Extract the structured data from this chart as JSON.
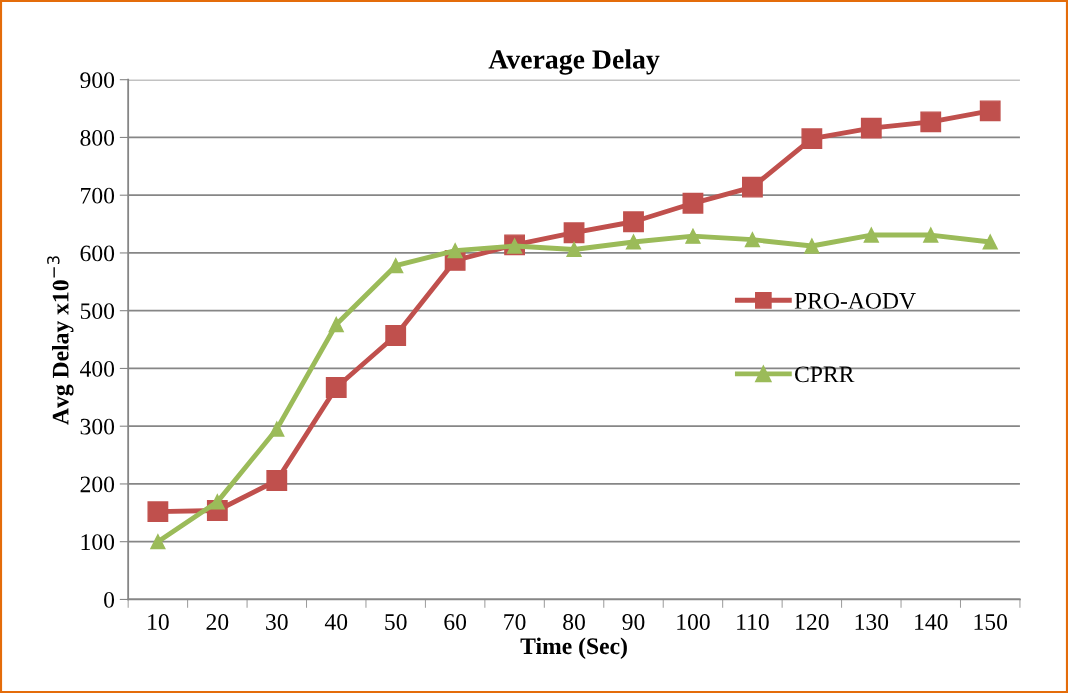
{
  "chart_data": {
    "type": "line",
    "title": "Average Delay",
    "xlabel": "Time (Sec)",
    "ylabel": "Avg Delay x10$^{−3}$",
    "categories": [
      "10",
      "20",
      "30",
      "40",
      "50",
      "60",
      "70",
      "80",
      "90",
      "100",
      "110",
      "120",
      "130",
      "140",
      "150"
    ],
    "series": [
      {
        "name": "PRO-AODV",
        "color": "#c0504d",
        "marker": "square",
        "values": [
          152,
          154,
          206,
          367,
          457,
          587,
          614,
          635,
          654,
          686,
          714,
          798,
          816,
          827,
          846
        ]
      },
      {
        "name": "CPRR",
        "color": "#9bbb59",
        "marker": "triangle",
        "values": [
          100,
          169,
          295,
          476,
          578,
          604,
          612,
          606,
          619,
          629,
          623,
          612,
          631,
          631,
          619
        ]
      }
    ],
    "ylim": [
      0,
      900
    ],
    "yticks": [
      0,
      100,
      200,
      300,
      400,
      500,
      600,
      700,
      800,
      900
    ],
    "grid": "y",
    "legend": "right",
    "line_style": "solid"
  }
}
